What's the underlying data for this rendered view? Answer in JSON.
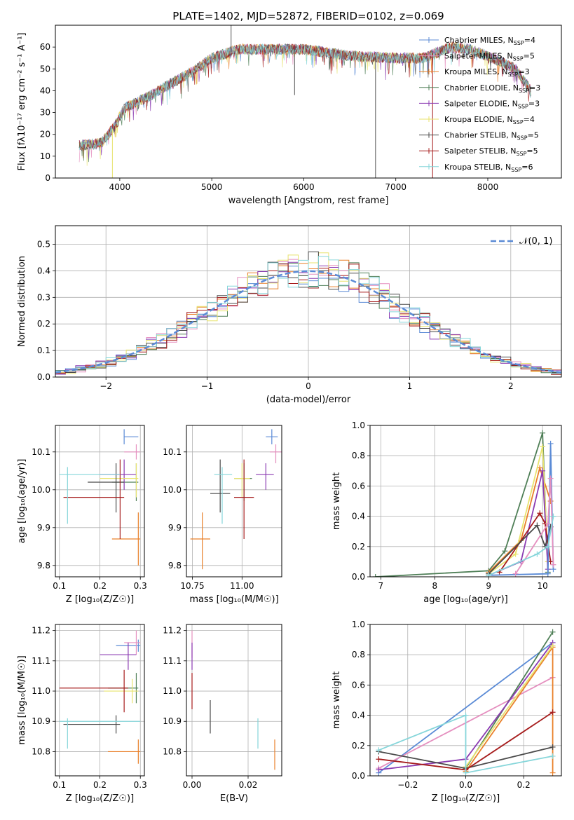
{
  "colors": {
    "Chabrier MILES": "#5b8bd6",
    "Salpeter MILES": "#e58fbf",
    "Kroupa MILES": "#e9802a",
    "Chabrier ELODIE": "#4f7f57",
    "Salpeter ELODIE": "#8b3bb2",
    "Kroupa ELODIE": "#e8e36e",
    "Chabrier STELIB": "#4a4a4a",
    "Salpeter STELIB": "#a61c1c",
    "Kroupa STELIB": "#86d6da"
  },
  "chart_data": [
    {
      "id": "spectrum",
      "type": "line",
      "title": "PLATE=1402, MJD=52872, FIBERID=0102, z=0.069",
      "xlabel": "wavelength [Angstrom, rest frame]",
      "ylabel": "Flux [fλ10⁻¹⁷ erg cm⁻² s⁻¹ A⁻¹]",
      "xlim": [
        3300,
        8800
      ],
      "ylim": [
        0,
        70
      ],
      "xticks": [
        4000,
        5000,
        6000,
        7000,
        8000
      ],
      "yticks": [
        0,
        10,
        20,
        30,
        40,
        50,
        60
      ],
      "grid": false,
      "legend_position": "top-right",
      "legend": [
        {
          "name": "Chabrier MILES",
          "nssp": "4"
        },
        {
          "name": "Salpeter MILES",
          "nssp": "5"
        },
        {
          "name": "Kroupa MILES",
          "nssp": "3"
        },
        {
          "name": "Chabrier ELODIE",
          "nssp": "3"
        },
        {
          "name": "Salpeter ELODIE",
          "nssp": "3"
        },
        {
          "name": "Kroupa ELODIE",
          "nssp": "4"
        },
        {
          "name": "Chabrier STELIB",
          "nssp": "5"
        },
        {
          "name": "Salpeter STELIB",
          "nssp": "5"
        },
        {
          "name": "Kroupa STELIB",
          "nssp": "6"
        }
      ],
      "continuum_anchors": [
        [
          3560,
          15
        ],
        [
          3800,
          16
        ],
        [
          3950,
          24
        ],
        [
          4050,
          32
        ],
        [
          4300,
          37
        ],
        [
          4500,
          42
        ],
        [
          4800,
          49
        ],
        [
          5000,
          55
        ],
        [
          5300,
          59
        ],
        [
          5600,
          59
        ],
        [
          6000,
          59
        ],
        [
          6500,
          56
        ],
        [
          7000,
          55
        ],
        [
          7300,
          55
        ],
        [
          7600,
          60
        ],
        [
          7800,
          59
        ],
        [
          8000,
          56
        ],
        [
          8300,
          50
        ],
        [
          8470,
          40
        ]
      ],
      "spikes": [
        [
          5210,
          73
        ],
        [
          5900,
          38
        ],
        [
          6780,
          0
        ],
        [
          3920,
          0
        ],
        [
          7400,
          0
        ]
      ]
    },
    {
      "id": "residuals",
      "type": "histogram",
      "xlabel": "(data-model)/error",
      "ylabel": "Normed distribution",
      "xlim": [
        -2.5,
        2.5
      ],
      "ylim": [
        0,
        0.57
      ],
      "xticks": [
        -2,
        -1,
        0,
        1,
        2
      ],
      "yticks": [
        0.0,
        0.1,
        0.2,
        0.3,
        0.4,
        0.5
      ],
      "grid": true,
      "bin_width": 0.1,
      "reference": {
        "name": "𝒩(0, 1)",
        "mean": 0,
        "sigma": 1
      },
      "legend_position": "top-right"
    },
    {
      "id": "age_vs_Z",
      "type": "scatter",
      "xlabel": "Z [log₁₀(Z/Z☉)]",
      "ylabel": "age  [log₁₀(age/yr)]",
      "xlim": [
        0.09,
        0.31
      ],
      "ylim": [
        9.77,
        10.17
      ],
      "xticks": [
        0.1,
        0.2,
        0.3
      ],
      "yticks": [
        9.8,
        9.9,
        10.0,
        10.1
      ],
      "grid": true,
      "points": [
        {
          "series": "Chabrier MILES",
          "x": 0.26,
          "xerr": [
            0.26,
            0.295
          ],
          "y": 10.14,
          "yerr": [
            10.12,
            10.16
          ]
        },
        {
          "series": "Salpeter MILES",
          "x": 0.29,
          "xerr": [
            0.26,
            0.3
          ],
          "y": 10.1,
          "yerr": [
            10.08,
            10.12
          ]
        },
        {
          "series": "Kroupa MILES",
          "x": 0.295,
          "xerr": [
            0.23,
            0.3
          ],
          "y": 9.87,
          "yerr": [
            9.8,
            9.94
          ]
        },
        {
          "series": "Chabrier ELODIE",
          "x": 0.29,
          "xerr": [
            0.23,
            0.295
          ],
          "y": 10.02,
          "yerr": [
            9.97,
            10.07
          ]
        },
        {
          "series": "Salpeter ELODIE",
          "x": 0.26,
          "xerr": [
            0.2,
            0.29
          ],
          "y": 10.04,
          "yerr": [
            10.0,
            10.08
          ]
        },
        {
          "series": "Kroupa ELODIE",
          "x": 0.29,
          "xerr": [
            0.2,
            0.295
          ],
          "y": 10.03,
          "yerr": [
            9.98,
            10.07
          ]
        },
        {
          "series": "Chabrier STELIB",
          "x": 0.24,
          "xerr": [
            0.17,
            0.26
          ],
          "y": 10.02,
          "yerr": [
            9.94,
            10.07
          ]
        },
        {
          "series": "Salpeter STELIB",
          "x": 0.25,
          "xerr": [
            0.11,
            0.26
          ],
          "y": 9.98,
          "yerr": [
            9.87,
            10.08
          ]
        },
        {
          "series": "Kroupa STELIB",
          "x": 0.12,
          "xerr": [
            0.1,
            0.25
          ],
          "y": 10.04,
          "yerr": [
            9.91,
            10.06
          ]
        }
      ]
    },
    {
      "id": "age_vs_mass",
      "type": "scatter",
      "xlabel": "mass [log₁₀(M/M☉)]",
      "ylabel": "",
      "xlim": [
        10.72,
        11.2
      ],
      "ylim": [
        9.77,
        10.17
      ],
      "xticks": [
        10.75,
        11.0
      ],
      "xticklabels": [
        "10.75",
        "11.00"
      ],
      "yticks": [
        9.8,
        9.9,
        10.0,
        10.1
      ],
      "grid": true,
      "points": [
        {
          "series": "Chabrier MILES",
          "x": 11.15,
          "xerr": [
            11.12,
            11.18
          ],
          "y": 10.14,
          "yerr": [
            10.12,
            10.16
          ]
        },
        {
          "series": "Salpeter MILES",
          "x": 11.17,
          "xerr": [
            11.14,
            11.2
          ],
          "y": 10.1,
          "yerr": [
            10.07,
            10.12
          ]
        },
        {
          "series": "Kroupa MILES",
          "x": 10.8,
          "xerr": [
            10.74,
            10.84
          ],
          "y": 9.87,
          "yerr": [
            9.79,
            9.94
          ]
        },
        {
          "series": "Chabrier ELODIE",
          "x": 11.01,
          "xerr": [
            10.96,
            11.05
          ],
          "y": 10.03,
          "yerr": [
            9.97,
            10.07
          ]
        },
        {
          "series": "Salpeter ELODIE",
          "x": 11.12,
          "xerr": [
            11.07,
            11.16
          ],
          "y": 10.04,
          "yerr": [
            10.0,
            10.07
          ]
        },
        {
          "series": "Kroupa ELODIE",
          "x": 11.0,
          "xerr": [
            10.96,
            11.04
          ],
          "y": 10.03,
          "yerr": [
            9.98,
            10.07
          ]
        },
        {
          "series": "Chabrier STELIB",
          "x": 10.89,
          "xerr": [
            10.84,
            10.94
          ],
          "y": 9.99,
          "yerr": [
            9.94,
            10.08
          ]
        },
        {
          "series": "Salpeter STELIB",
          "x": 11.01,
          "xerr": [
            10.96,
            11.06
          ],
          "y": 9.98,
          "yerr": [
            9.87,
            10.08
          ]
        },
        {
          "series": "Kroupa STELIB",
          "x": 10.9,
          "xerr": [
            10.86,
            10.95
          ],
          "y": 10.04,
          "yerr": [
            9.91,
            10.06
          ]
        }
      ]
    },
    {
      "id": "mass_weight_vs_age",
      "type": "line",
      "xlabel": "age  [log₁₀(age/yr)]",
      "ylabel": "mass weight",
      "xlim": [
        6.8,
        10.35
      ],
      "ylim": [
        0,
        1.0
      ],
      "xticks": [
        7,
        8,
        9,
        10
      ],
      "yticks": [
        0.0,
        0.2,
        0.4,
        0.6,
        0.8,
        1.0
      ],
      "grid": true,
      "series": [
        {
          "name": "Chabrier ELODIE",
          "points": [
            [
              6.9,
              0.0
            ],
            [
              9.0,
              0.04
            ],
            [
              9.3,
              0.17
            ],
            [
              10.0,
              0.95
            ],
            [
              10.1,
              0.03
            ]
          ]
        },
        {
          "name": "Kroupa MILES",
          "points": [
            [
              9.0,
              0.03
            ],
            [
              9.6,
              0.24
            ],
            [
              9.95,
              0.72
            ],
            [
              10.15,
              0.5
            ]
          ]
        },
        {
          "name": "Kroupa ELODIE",
          "points": [
            [
              9.0,
              0.02
            ],
            [
              9.5,
              0.15
            ],
            [
              10.0,
              0.86
            ],
            [
              10.1,
              0.1
            ]
          ]
        },
        {
          "name": "Salpeter ELODIE",
          "points": [
            [
              9.0,
              0.01
            ],
            [
              9.6,
              0.1
            ],
            [
              10.0,
              0.7
            ],
            [
              10.1,
              0.05
            ]
          ]
        },
        {
          "name": "Salpeter STELIB",
          "points": [
            [
              9.2,
              0.03
            ],
            [
              9.95,
              0.42
            ],
            [
              10.05,
              0.35
            ],
            [
              10.15,
              0.1
            ]
          ]
        },
        {
          "name": "Chabrier STELIB",
          "points": [
            [
              9.0,
              0.02
            ],
            [
              9.9,
              0.34
            ],
            [
              10.05,
              0.2
            ],
            [
              10.15,
              0.33
            ]
          ]
        },
        {
          "name": "Chabrier MILES",
          "points": [
            [
              9.0,
              0.01
            ],
            [
              10.1,
              0.02
            ],
            [
              10.15,
              0.88
            ],
            [
              10.2,
              0.05
            ]
          ]
        },
        {
          "name": "Salpeter MILES",
          "points": [
            [
              9.5,
              0.02
            ],
            [
              10.1,
              0.35
            ],
            [
              10.15,
              0.65
            ],
            [
              10.2,
              0.08
            ]
          ]
        },
        {
          "name": "Kroupa STELIB",
          "points": [
            [
              9.0,
              0.01
            ],
            [
              9.9,
              0.15
            ],
            [
              10.1,
              0.2
            ],
            [
              10.2,
              0.4
            ]
          ]
        }
      ]
    },
    {
      "id": "mass_vs_Z",
      "type": "scatter",
      "xlabel": "Z [log₁₀(Z/Z☉)]",
      "ylabel": "mass [log₁₀(M/M☉)]",
      "xlim": [
        0.09,
        0.31
      ],
      "ylim": [
        10.72,
        11.22
      ],
      "xticks": [
        0.1,
        0.2,
        0.3
      ],
      "yticks": [
        10.8,
        10.9,
        11.0,
        11.1,
        11.2
      ],
      "grid": true,
      "points": [
        {
          "series": "Chabrier MILES",
          "x": 0.295,
          "xerr": [
            0.24,
            0.3
          ],
          "y": 11.15,
          "yerr": [
            11.13,
            11.17
          ]
        },
        {
          "series": "Salpeter MILES",
          "x": 0.29,
          "xerr": [
            0.26,
            0.3
          ],
          "y": 11.16,
          "yerr": [
            11.12,
            11.2
          ]
        },
        {
          "series": "Kroupa MILES",
          "x": 0.295,
          "xerr": [
            0.22,
            0.3
          ],
          "y": 10.8,
          "yerr": [
            10.76,
            10.84
          ]
        },
        {
          "series": "Chabrier ELODIE",
          "x": 0.29,
          "xerr": [
            0.22,
            0.295
          ],
          "y": 11.01,
          "yerr": [
            10.96,
            11.06
          ]
        },
        {
          "series": "Salpeter ELODIE",
          "x": 0.27,
          "xerr": [
            0.2,
            0.29
          ],
          "y": 11.12,
          "yerr": [
            11.07,
            11.16
          ]
        },
        {
          "series": "Kroupa ELODIE",
          "x": 0.28,
          "xerr": [
            0.21,
            0.295
          ],
          "y": 11.0,
          "yerr": [
            10.96,
            11.04
          ]
        },
        {
          "series": "Chabrier STELIB",
          "x": 0.24,
          "xerr": [
            0.11,
            0.25
          ],
          "y": 10.89,
          "yerr": [
            10.86,
            10.92
          ]
        },
        {
          "series": "Salpeter STELIB",
          "x": 0.26,
          "xerr": [
            0.1,
            0.27
          ],
          "y": 11.01,
          "yerr": [
            10.93,
            11.07
          ]
        },
        {
          "series": "Kroupa STELIB",
          "x": 0.12,
          "xerr": [
            0.1,
            0.3
          ],
          "y": 10.9,
          "yerr": [
            10.81,
            10.91
          ]
        }
      ]
    },
    {
      "id": "mass_vs_EBV",
      "type": "scatter",
      "xlabel": "E(B-V)",
      "ylabel": "",
      "xlim": [
        -0.002,
        0.032
      ],
      "ylim": [
        10.72,
        11.22
      ],
      "xticks": [
        0.0,
        0.02
      ],
      "xticklabels": [
        "0.00",
        "0.02"
      ],
      "yticks": [
        10.8,
        10.9,
        11.0,
        11.1,
        11.2
      ],
      "grid": true,
      "points": [
        {
          "series": "Salpeter MILES",
          "x": 0.0,
          "y": 11.15,
          "yerr": [
            11.11,
            11.2
          ]
        },
        {
          "series": "Salpeter ELODIE",
          "x": 0.0,
          "y": 11.12,
          "yerr": [
            11.07,
            11.16
          ]
        },
        {
          "series": "Salpeter STELIB",
          "x": 0.0,
          "y": 11.0,
          "yerr": [
            10.94,
            11.06
          ]
        },
        {
          "series": "Chabrier STELIB",
          "x": 0.0065,
          "y": 10.92,
          "yerr": [
            10.86,
            10.97
          ]
        },
        {
          "series": "Kroupa STELIB",
          "x": 0.0235,
          "y": 10.86,
          "yerr": [
            10.81,
            10.91
          ]
        },
        {
          "series": "Kroupa MILES",
          "x": 0.0295,
          "y": 10.79,
          "yerr": [
            10.74,
            10.84
          ]
        }
      ]
    },
    {
      "id": "mass_weight_vs_Z",
      "type": "line",
      "xlabel": "Z [log₁₀(Z/Z☉)]",
      "ylabel": "mass weight",
      "xlim": [
        -0.33,
        0.33
      ],
      "ylim": [
        0,
        1.0
      ],
      "xticks": [
        -0.2,
        0.0,
        0.2
      ],
      "xticklabels": [
        "−0.2",
        "0.0",
        "0.2"
      ],
      "yticks": [
        0.0,
        0.2,
        0.4,
        0.6,
        0.8,
        1.0
      ],
      "grid": true,
      "series": [
        {
          "name": "Chabrier MILES",
          "points": [
            [
              -0.3,
              0.02
            ],
            [
              0.3,
              0.88
            ]
          ]
        },
        {
          "name": "Salpeter MILES",
          "points": [
            [
              -0.3,
              0.05
            ],
            [
              0.3,
              0.65
            ]
          ]
        },
        {
          "name": "Kroupa MILES",
          "points": [
            [
              0.0,
              0.03
            ],
            [
              0.3,
              0.85
            ],
            [
              0.3,
              0.02
            ]
          ]
        },
        {
          "name": "Chabrier ELODIE",
          "points": [
            [
              0.0,
              0.05
            ],
            [
              0.3,
              0.95
            ]
          ]
        },
        {
          "name": "Salpeter ELODIE",
          "points": [
            [
              -0.3,
              0.04
            ],
            [
              0.0,
              0.11
            ],
            [
              0.3,
              0.88
            ]
          ]
        },
        {
          "name": "Kroupa ELODIE",
          "points": [
            [
              0.0,
              0.06
            ],
            [
              0.3,
              0.86
            ]
          ]
        },
        {
          "name": "Chabrier STELIB",
          "points": [
            [
              -0.3,
              0.16
            ],
            [
              0.0,
              0.05
            ],
            [
              0.3,
              0.19
            ]
          ]
        },
        {
          "name": "Salpeter STELIB",
          "points": [
            [
              -0.3,
              0.11
            ],
            [
              0.0,
              0.04
            ],
            [
              0.3,
              0.42
            ]
          ]
        },
        {
          "name": "Kroupa STELIB",
          "points": [
            [
              -0.3,
              0.17
            ],
            [
              0.0,
              0.4
            ],
            [
              0.0,
              0.02
            ],
            [
              0.3,
              0.13
            ]
          ]
        }
      ]
    }
  ]
}
